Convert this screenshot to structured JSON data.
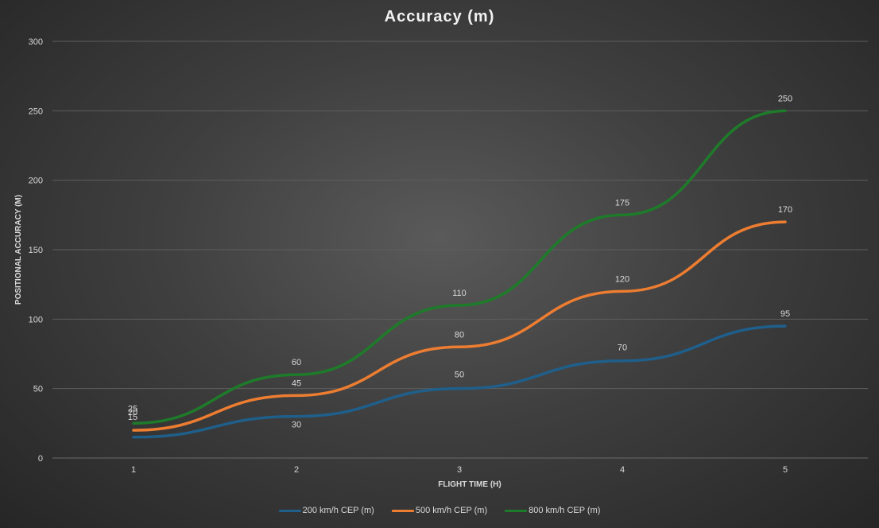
{
  "chart_data": {
    "type": "line",
    "title": "Accuracy (m)",
    "xlabel": "FLIGHT TIME (H)",
    "ylabel": "POSITIONAL ACCURACY (M)",
    "x": [
      1,
      2,
      3,
      4,
      5
    ],
    "ylim": [
      0,
      300
    ],
    "yticks": [
      0,
      50,
      100,
      150,
      200,
      250,
      300
    ],
    "grid": true,
    "legend_position": "bottom",
    "series": [
      {
        "name": "200 km/h CEP (m)",
        "color": "#1f5f8b",
        "values": [
          15,
          30,
          50,
          70,
          95
        ]
      },
      {
        "name": "500 km/h CEP (m)",
        "color": "#ed7d31",
        "values": [
          20,
          45,
          80,
          120,
          170
        ]
      },
      {
        "name": "800 km/h CEP (m)",
        "color": "#1e7b2a",
        "values": [
          25,
          60,
          110,
          175,
          250
        ]
      }
    ]
  }
}
